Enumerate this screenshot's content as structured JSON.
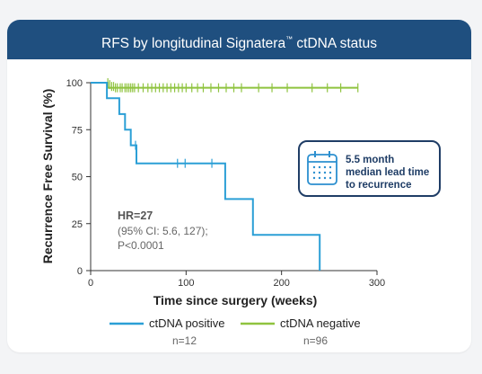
{
  "header": {
    "title_pre": "RFS by longitudinal Signatera",
    "title_tm": "™",
    "title_post": " ctDNA status"
  },
  "callout": {
    "icon": "calendar-icon",
    "line1": "5.5 month",
    "line2": "median lead time",
    "line3": "to recurrence"
  },
  "stats": {
    "hr": "HR=27",
    "ci": "(95% CI: 5.6, 127);",
    "p": "P<0.0001"
  },
  "legend": [
    {
      "label": "ctDNA positive",
      "n": "n=12",
      "color": "#2b9fd6"
    },
    {
      "label": "ctDNA negative",
      "n": "n=96",
      "color": "#8fc33f"
    }
  ],
  "chart_data": {
    "type": "line",
    "subtype": "kaplan-meier-step",
    "xlabel": "Time since surgery (weeks)",
    "ylabel": "Recurrence Free Survival (%)",
    "xlim": [
      0,
      300
    ],
    "ylim": [
      0,
      100
    ],
    "xticks": [
      0,
      100,
      200,
      300
    ],
    "yticks": [
      0,
      25,
      50,
      75,
      100
    ],
    "grid": false,
    "legend_position": "bottom",
    "series": [
      {
        "name": "ctDNA positive",
        "color": "#2b9fd6",
        "steps": [
          [
            0,
            100
          ],
          [
            17,
            100
          ],
          [
            17,
            91.7
          ],
          [
            30,
            91.7
          ],
          [
            30,
            83.3
          ],
          [
            36,
            83.3
          ],
          [
            36,
            75
          ],
          [
            42,
            75
          ],
          [
            42,
            66.7
          ],
          [
            48,
            66.7
          ],
          [
            48,
            57.1
          ],
          [
            141,
            57.1
          ],
          [
            141,
            38.1
          ],
          [
            170,
            38.1
          ],
          [
            170,
            19
          ],
          [
            235,
            19
          ],
          [
            235,
            19
          ],
          [
            240,
            19
          ],
          [
            240,
            0
          ]
        ],
        "censored": [
          [
            47,
            66.7
          ],
          [
            91,
            57.1
          ],
          [
            99,
            57.1
          ],
          [
            127,
            57.1
          ]
        ]
      },
      {
        "name": "ctDNA negative",
        "color": "#8fc33f",
        "steps": [
          [
            0,
            100
          ],
          [
            18,
            100
          ],
          [
            18,
            97.3
          ],
          [
            280,
            97.3
          ]
        ],
        "censored": [
          [
            18,
            100
          ],
          [
            20,
            99
          ],
          [
            22,
            98
          ],
          [
            24,
            98
          ],
          [
            26,
            97.3
          ],
          [
            28,
            97.3
          ],
          [
            31,
            97.3
          ],
          [
            33,
            97.3
          ],
          [
            36,
            97.3
          ],
          [
            38,
            97.3
          ],
          [
            40,
            97.3
          ],
          [
            42,
            97.3
          ],
          [
            44,
            97.3
          ],
          [
            46,
            97.3
          ],
          [
            50,
            97.3
          ],
          [
            55,
            97.3
          ],
          [
            60,
            97.3
          ],
          [
            64,
            97.3
          ],
          [
            68,
            97.3
          ],
          [
            72,
            97.3
          ],
          [
            76,
            97.3
          ],
          [
            80,
            97.3
          ],
          [
            84,
            97.3
          ],
          [
            88,
            97.3
          ],
          [
            92,
            97.3
          ],
          [
            96,
            97.3
          ],
          [
            100,
            97.3
          ],
          [
            106,
            97.3
          ],
          [
            112,
            97.3
          ],
          [
            118,
            97.3
          ],
          [
            126,
            97.3
          ],
          [
            134,
            97.3
          ],
          [
            142,
            97.3
          ],
          [
            150,
            97.3
          ],
          [
            158,
            97.3
          ],
          [
            176,
            97.3
          ],
          [
            190,
            97.3
          ],
          [
            206,
            97.3
          ],
          [
            232,
            97.3
          ],
          [
            248,
            97.3
          ],
          [
            262,
            97.3
          ],
          [
            280,
            97.3
          ]
        ]
      }
    ]
  }
}
